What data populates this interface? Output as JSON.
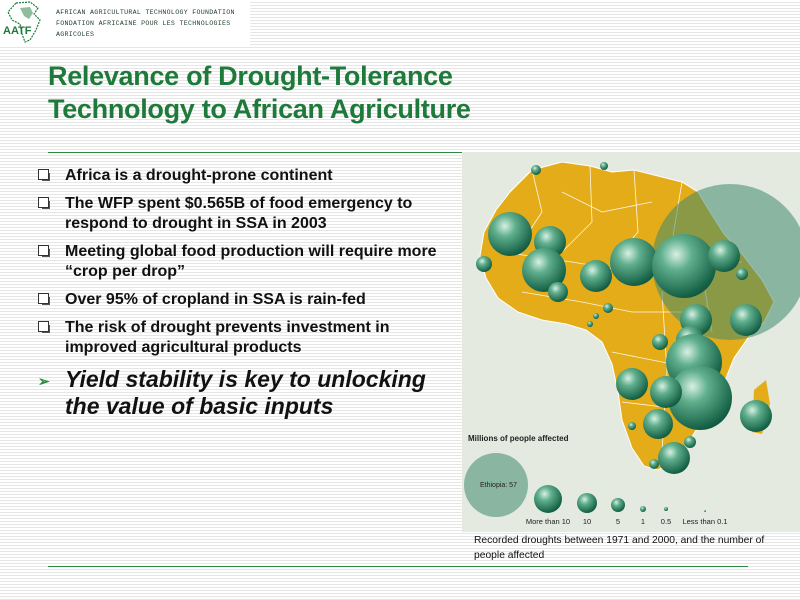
{
  "header": {
    "logo_abbr": "AATF",
    "org_name_en": "AFRICAN AGRICULTURAL TECHNOLOGY FOUNDATION",
    "org_name_fr": "FONDATION AFRICAINE POUR LES TECHNOLOGIES AGRICOLES"
  },
  "title": {
    "line1": "Relevance of Drought-Tolerance",
    "line2": "Technology to African Agriculture"
  },
  "bullets": [
    "Africa is a drought-prone continent",
    "The WFP spent $0.565B of food emergency to respond to drought in SSA in 2003",
    "Meeting global food production will require more “crop per drop”",
    "Over 95% of cropland in SSA is rain-fed",
    "The risk of drought prevents investment in improved agricultural products"
  ],
  "key_point": "Yield stability is key to unlocking the value of basic inputs",
  "map": {
    "legend_title": "Millions of people affected",
    "ethiopia_label": "Ethiopia: 57",
    "legend_sizes": [
      "More than 10",
      "10",
      "5",
      "1",
      "0.5",
      "Less than 0.1"
    ],
    "caption": "Recorded droughts between 1971 and 2000, and the number of people affected"
  },
  "colors": {
    "title_green": "#1e7a3a",
    "continent": "#e4ac18",
    "bubble": "#1f7a5a",
    "panel": "#e4eadf"
  }
}
